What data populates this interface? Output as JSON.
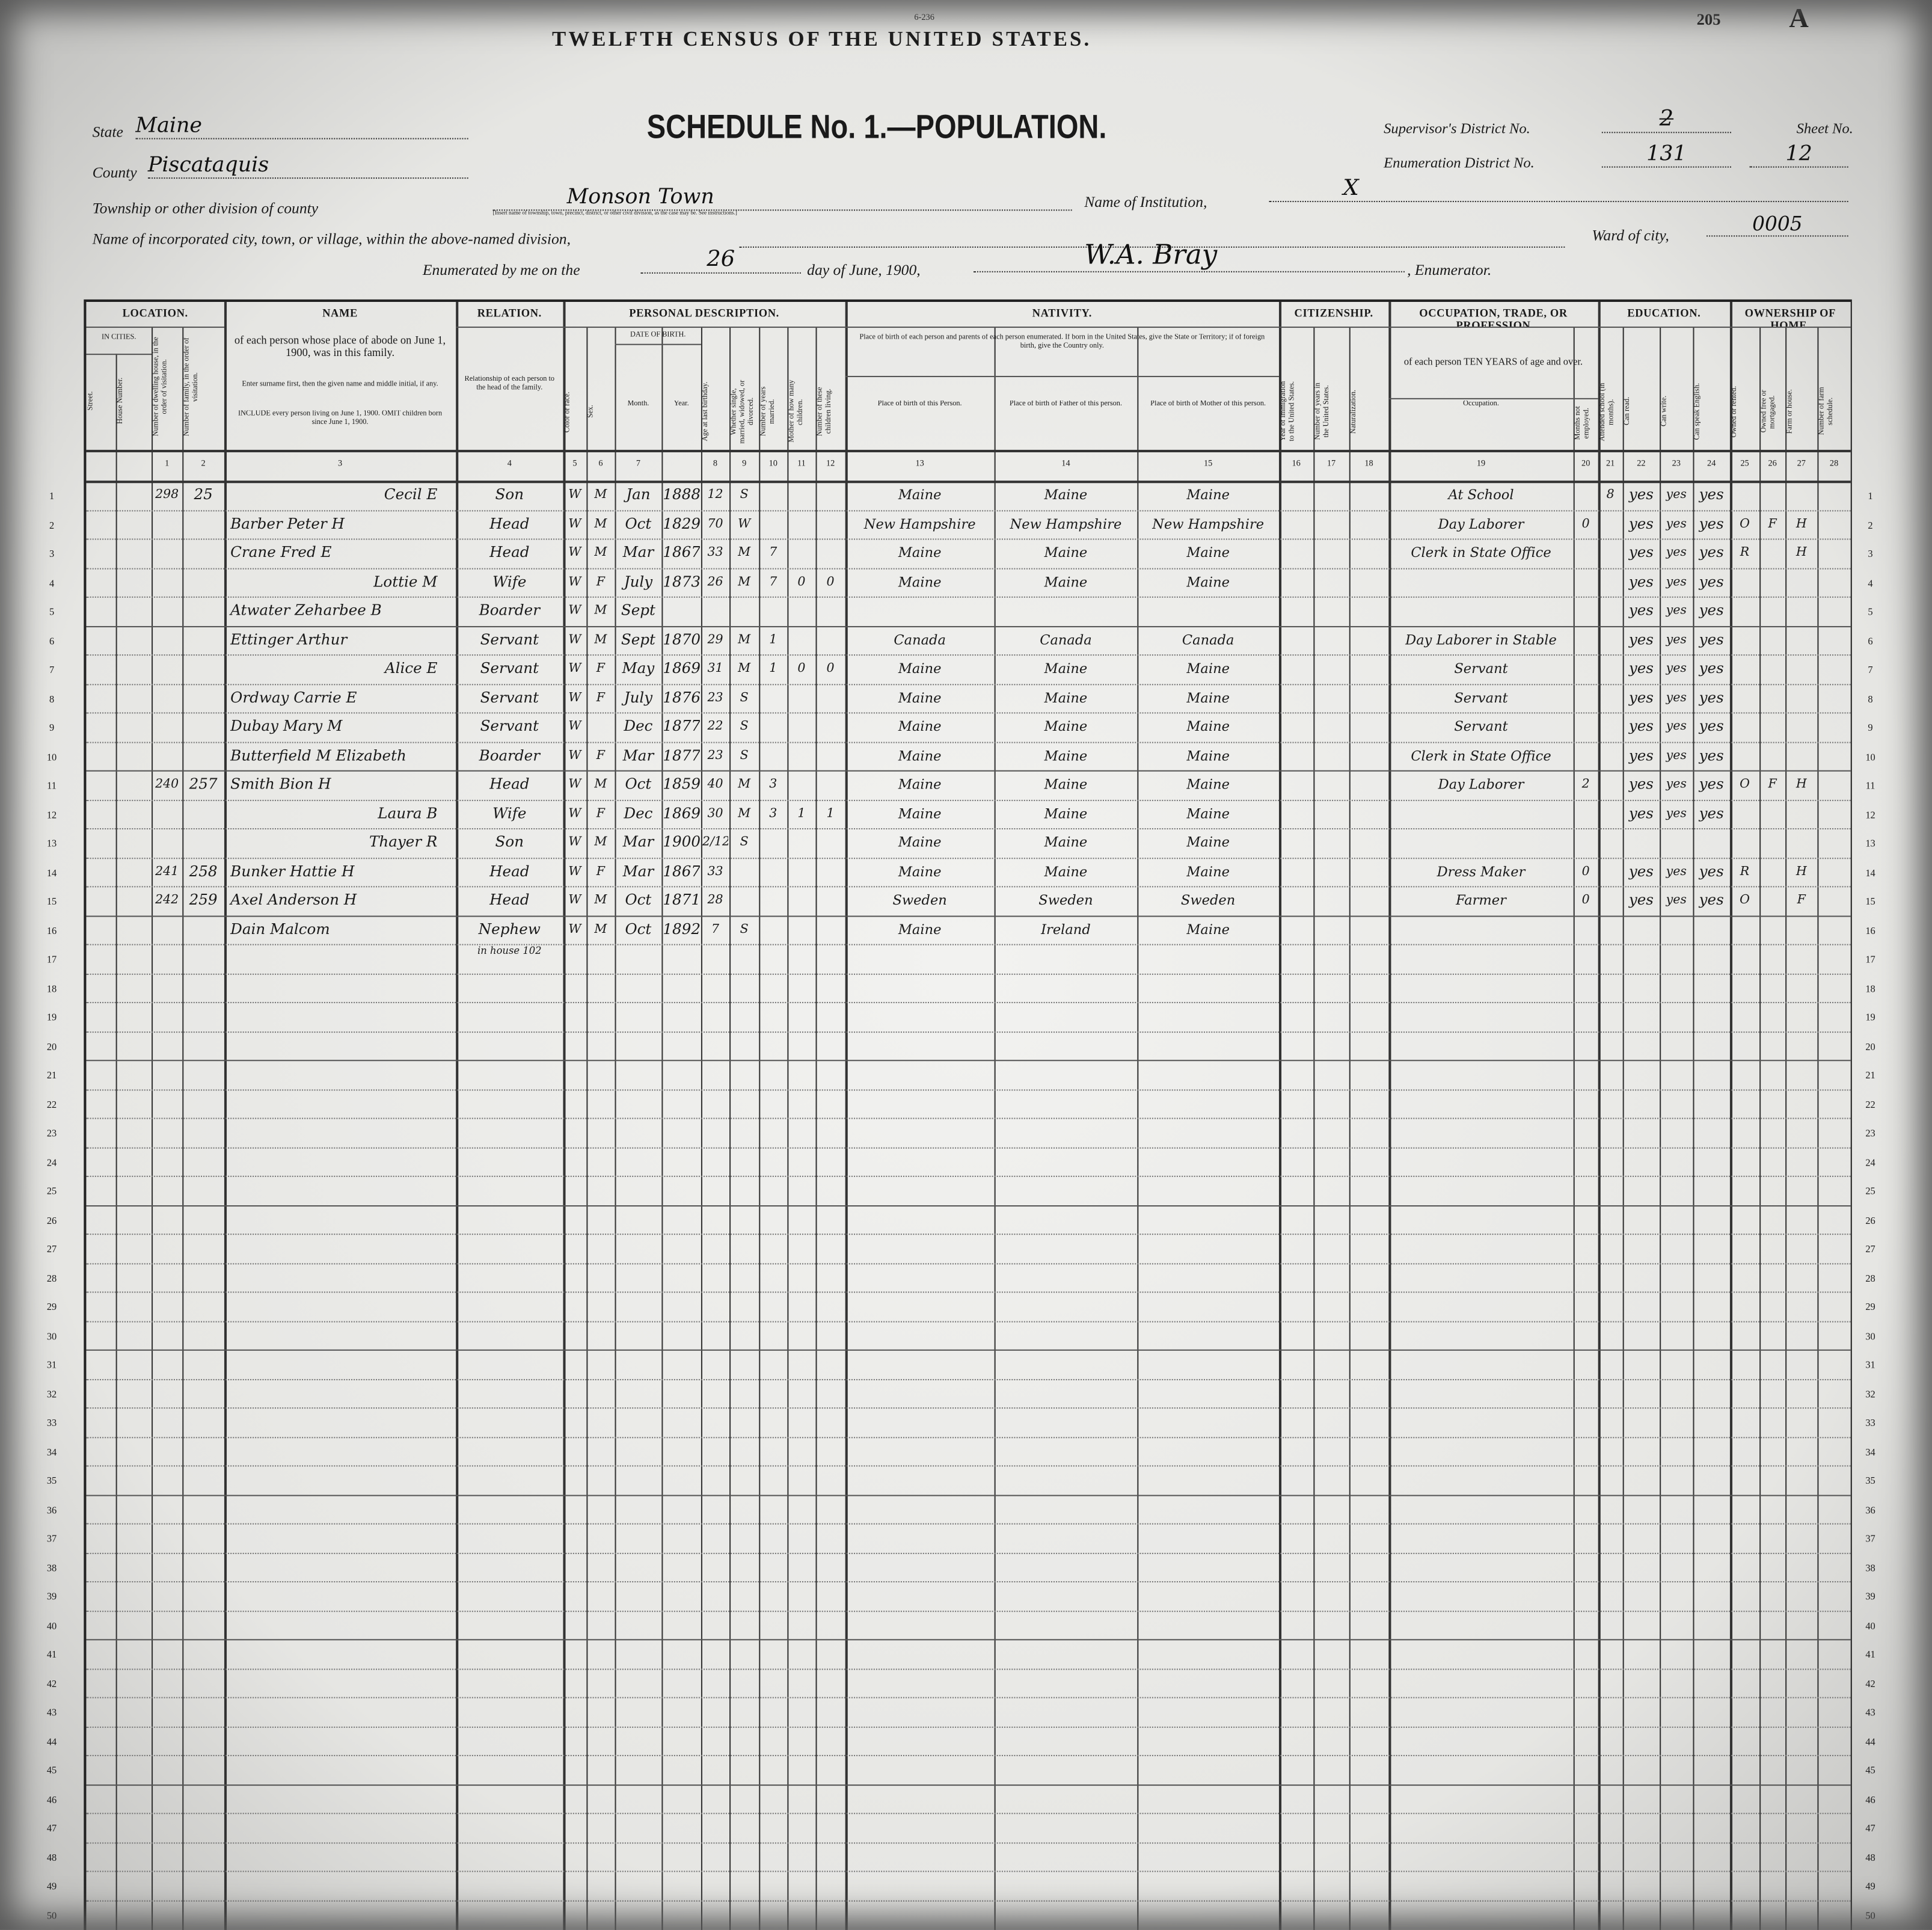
{
  "form": {
    "form_code": "6-236",
    "census_title": "TWELFTH CENSUS OF THE UNITED STATES.",
    "schedule_title": "SCHEDULE No. 1.—POPULATION.",
    "page_number": "205",
    "page_letter": "A",
    "state_label": "State",
    "state": "Maine",
    "county_label": "County",
    "county": "Piscataquis",
    "township_label": "Township or other division of county",
    "township": "Monson Town",
    "township_note": "[Insert name of township, town, precinct, district, or other civil division, as the case may be. See instructions.]",
    "institution_label": "Name of Institution,",
    "institution": "X",
    "city_label": "Name of incorporated city, town, or village, within the above-named division,",
    "city": "",
    "ward_label": "Ward of city,",
    "ward": "0005",
    "supervisor_label": "Supervisor's District No.",
    "supervisor": "2",
    "enum_district_label": "Enumeration District No.",
    "enum_district": "131",
    "sheet_label": "Sheet No.",
    "sheet": "12",
    "enumerated_prefix": "Enumerated by me on the",
    "day": "26",
    "day_suffix": "day of June, 1900,",
    "enumerator": "W.A. Bray",
    "enumerator_label": ", Enumerator."
  },
  "groups": [
    {
      "label": "LOCATION.",
      "from": 0,
      "to": 3
    },
    {
      "label": "NAME",
      "from": 4,
      "to": 4
    },
    {
      "label": "RELATION.",
      "from": 5,
      "to": 5
    },
    {
      "label": "PERSONAL DESCRIPTION.",
      "from": 6,
      "to": 14
    },
    {
      "label": "NATIVITY.",
      "from": 15,
      "to": 17
    },
    {
      "label": "CITIZENSHIP.",
      "from": 18,
      "to": 20
    },
    {
      "label": "OCCUPATION, TRADE, OR PROFESSION",
      "from": 21,
      "to": 22
    },
    {
      "label": "EDUCATION.",
      "from": 23,
      "to": 26
    },
    {
      "label": "OWNERSHIP OF HOME.",
      "from": 27,
      "to": 30
    }
  ],
  "subheaders": {
    "in_cities": "IN CITIES.",
    "name_desc": "of each person whose place of abode on June 1, 1900, was in this family.",
    "name_enter": "Enter surname first, then the given name and middle initial, if any.",
    "name_include": "INCLUDE every person living on June 1, 1900. OMIT children born since June 1, 1900.",
    "relation_desc": "Relationship of each person to the head of the family.",
    "date_of_birth": "DATE OF BIRTH.",
    "nativity_desc": "Place of birth of each person and parents of each person enumerated. If born in the United States, give the State or Territory; if of foreign birth, give the Country only.",
    "occupation_desc": "of each person TEN YEARS of age and over."
  },
  "columns": [
    {
      "label": "Street.",
      "num": ""
    },
    {
      "label": "House Number.",
      "num": ""
    },
    {
      "label": "Number of dwelling house, in the order of visitation.",
      "num": "1"
    },
    {
      "label": "Number of family, in the order of visitation.",
      "num": "2"
    },
    {
      "label": "",
      "num": "3"
    },
    {
      "label": "",
      "num": "4"
    },
    {
      "label": "Color or race.",
      "num": "5"
    },
    {
      "label": "Sex.",
      "num": "6"
    },
    {
      "label": "Month.",
      "num": "7"
    },
    {
      "label": "Year.",
      "num": ""
    },
    {
      "label": "Age at last birthday.",
      "num": "8"
    },
    {
      "label": "Whether single, married, widowed, or divorced.",
      "num": "9"
    },
    {
      "label": "Number of years married.",
      "num": "10"
    },
    {
      "label": "Mother of how many children.",
      "num": "11"
    },
    {
      "label": "Number of these children living.",
      "num": "12"
    },
    {
      "label": "Place of birth of this Person.",
      "num": "13"
    },
    {
      "label": "Place of birth of Father of this person.",
      "num": "14"
    },
    {
      "label": "Place of birth of Mother of this person.",
      "num": "15"
    },
    {
      "label": "Year of immigration to the United States.",
      "num": "16"
    },
    {
      "label": "Number of years in the United States.",
      "num": "17"
    },
    {
      "label": "Naturalization.",
      "num": "18"
    },
    {
      "label": "Occupation.",
      "num": "19"
    },
    {
      "label": "Months not employed.",
      "num": "20"
    },
    {
      "label": "Attended school (in months).",
      "num": "21"
    },
    {
      "label": "Can read.",
      "num": "22"
    },
    {
      "label": "Can write.",
      "num": "23"
    },
    {
      "label": "Can speak English.",
      "num": "24"
    },
    {
      "label": "Owned or rented.",
      "num": "25"
    },
    {
      "label": "Owned free or mortgaged.",
      "num": "26"
    },
    {
      "label": "Farm or house.",
      "num": "27"
    },
    {
      "label": "Number of farm schedule.",
      "num": "28"
    }
  ],
  "rows": [
    {
      "line": "1",
      "cells": [
        "",
        "",
        "298",
        "25",
        "Cecil E",
        "Son",
        "W",
        "M",
        "Jan",
        "1888",
        "12",
        "S",
        "",
        "",
        "",
        "Maine",
        "Maine",
        "Maine",
        "",
        "",
        "",
        "At School",
        "",
        "8",
        "yes",
        "yes",
        "yes",
        "",
        "",
        "",
        ""
      ]
    },
    {
      "line": "2",
      "cells": [
        "",
        "",
        "",
        "",
        "Barber Peter H",
        "Head",
        "W",
        "M",
        "Oct",
        "1829",
        "70",
        "W",
        "",
        "",
        "",
        "New Hampshire",
        "New Hampshire",
        "New Hampshire",
        "",
        "",
        "",
        "Day Laborer",
        "0",
        "",
        "yes",
        "yes",
        "yes",
        "O",
        "F",
        "H",
        ""
      ]
    },
    {
      "line": "3",
      "cells": [
        "",
        "",
        "",
        "",
        "Crane Fred E",
        "Head",
        "W",
        "M",
        "Mar",
        "1867",
        "33",
        "M",
        "7",
        "",
        "",
        "Maine",
        "Maine",
        "Maine",
        "",
        "",
        "",
        "Clerk in State Office",
        "",
        "",
        "yes",
        "yes",
        "yes",
        "R",
        "",
        "H",
        ""
      ]
    },
    {
      "line": "4",
      "cells": [
        "",
        "",
        "",
        "",
        "Lottie M",
        "Wife",
        "W",
        "F",
        "July",
        "1873",
        "26",
        "M",
        "7",
        "0",
        "0",
        "Maine",
        "Maine",
        "Maine",
        "",
        "",
        "",
        "",
        "",
        "",
        "yes",
        "yes",
        "yes",
        "",
        "",
        "",
        ""
      ]
    },
    {
      "line": "5",
      "cells": [
        "",
        "",
        "",
        "",
        "Atwater Zeharbee B",
        "Boarder",
        "W",
        "M",
        "Sept",
        "",
        "",
        "",
        "",
        "",
        "",
        "",
        "",
        "",
        "",
        "",
        "",
        "",
        "",
        "",
        "yes",
        "yes",
        "yes",
        "",
        "",
        "",
        ""
      ]
    },
    {
      "line": "6",
      "cells": [
        "",
        "",
        "",
        "",
        "Ettinger Arthur",
        "Servant",
        "W",
        "M",
        "Sept",
        "1870",
        "29",
        "M",
        "1",
        "",
        "",
        "Canada",
        "Canada",
        "Canada",
        "",
        "",
        "",
        "Day Laborer in Stable",
        "",
        "",
        "yes",
        "yes",
        "yes",
        "",
        "",
        "",
        ""
      ]
    },
    {
      "line": "7",
      "cells": [
        "",
        "",
        "",
        "",
        "Alice E",
        "Servant",
        "W",
        "F",
        "May",
        "1869",
        "31",
        "M",
        "1",
        "0",
        "0",
        "Maine",
        "Maine",
        "Maine",
        "",
        "",
        "",
        "Servant",
        "",
        "",
        "yes",
        "yes",
        "yes",
        "",
        "",
        "",
        ""
      ]
    },
    {
      "line": "8",
      "cells": [
        "",
        "",
        "",
        "",
        "Ordway Carrie E",
        "Servant",
        "W",
        "F",
        "July",
        "1876",
        "23",
        "S",
        "",
        "",
        "",
        "Maine",
        "Maine",
        "Maine",
        "",
        "",
        "",
        "Servant",
        "",
        "",
        "yes",
        "yes",
        "yes",
        "",
        "",
        "",
        ""
      ]
    },
    {
      "line": "9",
      "cells": [
        "",
        "",
        "",
        "",
        "Dubay Mary M",
        "Servant",
        "W",
        "",
        "Dec",
        "1877",
        "22",
        "S",
        "",
        "",
        "",
        "Maine",
        "Maine",
        "Maine",
        "",
        "",
        "",
        "Servant",
        "",
        "",
        "yes",
        "yes",
        "yes",
        "",
        "",
        "",
        ""
      ]
    },
    {
      "line": "10",
      "cells": [
        "",
        "",
        "",
        "",
        "Butterfield M Elizabeth",
        "Boarder",
        "W",
        "F",
        "Mar",
        "1877",
        "23",
        "S",
        "",
        "",
        "",
        "Maine",
        "Maine",
        "Maine",
        "",
        "",
        "",
        "Clerk in State Office",
        "",
        "",
        "yes",
        "yes",
        "yes",
        "",
        "",
        "",
        ""
      ]
    },
    {
      "line": "11",
      "cells": [
        "",
        "",
        "240",
        "257",
        "Smith Bion H",
        "Head",
        "W",
        "M",
        "Oct",
        "1859",
        "40",
        "M",
        "3",
        "",
        "",
        "Maine",
        "Maine",
        "Maine",
        "",
        "",
        "",
        "Day Laborer",
        "2",
        "",
        "yes",
        "yes",
        "yes",
        "O",
        "F",
        "H",
        ""
      ]
    },
    {
      "line": "12",
      "cells": [
        "",
        "",
        "",
        "",
        "Laura B",
        "Wife",
        "W",
        "F",
        "Dec",
        "1869",
        "30",
        "M",
        "3",
        "1",
        "1",
        "Maine",
        "Maine",
        "Maine",
        "",
        "",
        "",
        "",
        "",
        "",
        "yes",
        "yes",
        "yes",
        "",
        "",
        "",
        ""
      ]
    },
    {
      "line": "13",
      "cells": [
        "",
        "",
        "",
        "",
        "Thayer R",
        "Son",
        "W",
        "M",
        "Mar",
        "1900",
        "2/12",
        "S",
        "",
        "",
        "",
        "Maine",
        "Maine",
        "Maine",
        "",
        "",
        "",
        "",
        "",
        "",
        "",
        "",
        "",
        "",
        "",
        "",
        ""
      ]
    },
    {
      "line": "14",
      "cells": [
        "",
        "",
        "241",
        "258",
        "Bunker Hattie H",
        "Head",
        "W",
        "F",
        "Mar",
        "1867",
        "33",
        "",
        "",
        "",
        "",
        "Maine",
        "Maine",
        "Maine",
        "",
        "",
        "",
        "Dress Maker",
        "0",
        "",
        "yes",
        "yes",
        "yes",
        "R",
        "",
        "H",
        ""
      ]
    },
    {
      "line": "15",
      "cells": [
        "",
        "",
        "242",
        "259",
        "Axel Anderson H",
        "Head",
        "W",
        "M",
        "Oct",
        "1871",
        "28",
        "",
        "",
        "",
        "",
        "Sweden",
        "Sweden",
        "Sweden",
        "",
        "",
        "",
        "Farmer",
        "0",
        "",
        "yes",
        "yes",
        "yes",
        "O",
        "",
        "F",
        ""
      ]
    },
    {
      "line": "16",
      "cells": [
        "",
        "",
        "",
        "",
        "Dain Malcom",
        "Nephew",
        "W",
        "M",
        "Oct",
        "1892",
        "7",
        "S",
        "",
        "",
        "",
        "Maine",
        "Ireland",
        "Maine",
        "",
        "",
        "",
        "",
        "",
        "",
        "",
        "",
        "",
        "",
        "",
        "",
        ""
      ]
    }
  ],
  "row16_note": "in house 102",
  "total_lines": 50
}
